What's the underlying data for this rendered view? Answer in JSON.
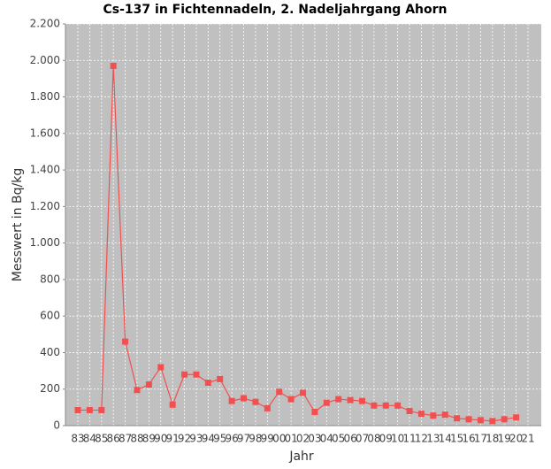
{
  "chart_data": {
    "type": "line",
    "title": "Cs-137 in Fichtennadeln, 2. Nadeljahrgang Ahorn",
    "x_label": "Jahr",
    "y_label": "Messwert in Bq/kg",
    "categories": [
      "83",
      "84",
      "85",
      "86",
      "87",
      "88",
      "89",
      "90",
      "91",
      "92",
      "93",
      "94",
      "95",
      "96",
      "97",
      "98",
      "99",
      "00",
      "01",
      "02",
      "03",
      "04",
      "05",
      "06",
      "07",
      "08",
      "09",
      "10",
      "11",
      "12",
      "13",
      "14",
      "15",
      "16",
      "17",
      "18",
      "19",
      "20",
      "21"
    ],
    "series": [
      {
        "name": "Cs-137",
        "color": "#f25050",
        "values": [
          85,
          85,
          85,
          1970,
          460,
          195,
          225,
          320,
          115,
          280,
          280,
          235,
          255,
          135,
          150,
          130,
          95,
          185,
          145,
          180,
          75,
          125,
          145,
          140,
          135,
          110,
          110,
          110,
          80,
          65,
          55,
          60,
          40,
          35,
          30,
          25,
          35,
          45,
          null
        ]
      }
    ],
    "ylim": [
      0,
      2200
    ],
    "yticks": [
      0,
      200,
      400,
      600,
      800,
      {
        "value": 1000,
        "label": "1.000"
      },
      {
        "value": 1200,
        "label": "1.200"
      },
      {
        "value": 1400,
        "label": "1.400"
      },
      {
        "value": 1600,
        "label": "1.600"
      },
      {
        "value": 1800,
        "label": "1.800"
      },
      {
        "value": 2000,
        "label": "2.000"
      },
      {
        "value": 2200,
        "label": "2.200"
      }
    ],
    "grid": true,
    "background": "#c0c0c0"
  }
}
